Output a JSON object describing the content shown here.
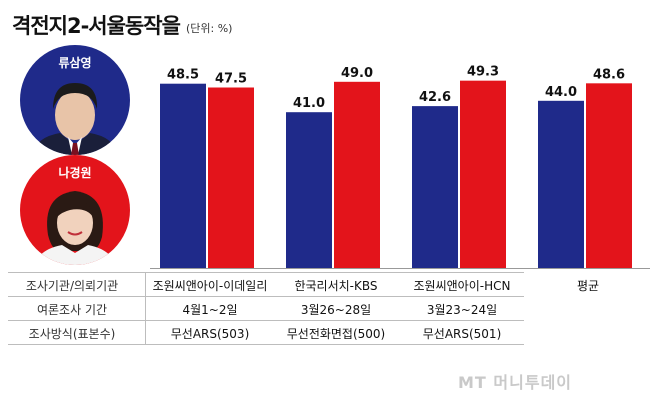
{
  "header": {
    "title": "격전지2-서울동작을",
    "unit": "(단위: %)"
  },
  "candidates": [
    {
      "name": "류삼영",
      "color": "#1f2a8a"
    },
    {
      "name": "나경원",
      "color": "#e3141b"
    }
  ],
  "chart_data": {
    "type": "bar",
    "categories": [
      "조원씨앤아이-이데일리",
      "한국리서치-KBS",
      "조원씨앤아이-HCN",
      "평균"
    ],
    "series": [
      {
        "name": "류삼영",
        "color": "#1f2a8a",
        "values": [
          48.5,
          41.0,
          42.6,
          44.0
        ],
        "labels": [
          "48.5",
          "41.0",
          "42.6",
          "44.0"
        ]
      },
      {
        "name": "나경원",
        "color": "#e3141b",
        "values": [
          47.5,
          49.0,
          49.3,
          48.6
        ],
        "labels": [
          "47.5",
          "49.0",
          "49.3",
          "48.6"
        ]
      }
    ],
    "ylim": [
      0,
      60
    ],
    "grid": false,
    "legend": "left"
  },
  "table": {
    "row_labels": [
      "조사기관/의뢰기관",
      "여론조사 기간",
      "조사방식(표본수)"
    ],
    "columns": [
      {
        "org": "조원씨앤아이-이데일리",
        "period": "4월1~2일",
        "method": "무선ARS(503)"
      },
      {
        "org": "한국리서치-KBS",
        "period": "3월26~28일",
        "method": "무선전화면접(500)"
      },
      {
        "org": "조원씨앤아이-HCN",
        "period": "3월23~24일",
        "method": "무선ARS(501)"
      },
      {
        "org": "평균",
        "period": "",
        "method": ""
      }
    ]
  },
  "watermark": "MT 머니투데이"
}
